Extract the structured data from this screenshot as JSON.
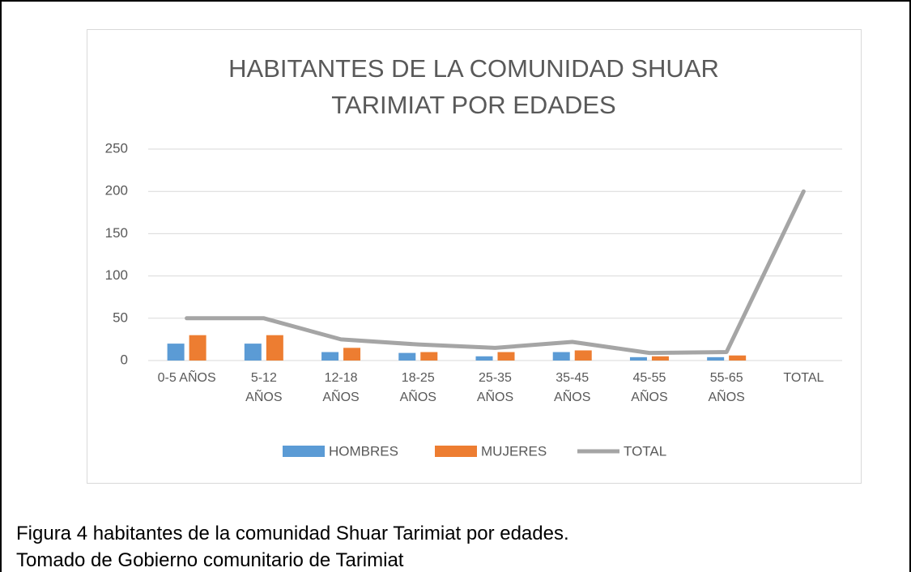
{
  "chart_data": {
    "type": "bar",
    "title": "HABITANTES DE LA COMUNIDAD SHUAR TARIMIAT POR EDADES",
    "categories": [
      "0-5 AÑOS",
      "5-12 AÑOS",
      "12-18 AÑOS",
      "18-25 AÑOS",
      "25-35 AÑOS",
      "35-45 AÑOS",
      "45-55 AÑOS",
      "55-65 AÑOS",
      "TOTAL"
    ],
    "series": [
      {
        "name": "HOMBRES",
        "type": "bar",
        "color": "#5b9bd5",
        "values": [
          20,
          20,
          10,
          9,
          5,
          10,
          4,
          4,
          null
        ]
      },
      {
        "name": "MUJERES",
        "type": "bar",
        "color": "#ed7d31",
        "values": [
          30,
          30,
          15,
          10,
          10,
          12,
          5,
          6,
          null
        ]
      },
      {
        "name": "TOTAL",
        "type": "line",
        "color": "#a5a5a5",
        "values": [
          50,
          50,
          25,
          19,
          15,
          22,
          9,
          10,
          200
        ]
      }
    ],
    "ylim": [
      0,
      250
    ],
    "yticks": [
      0,
      50,
      100,
      150,
      200,
      250
    ],
    "grid": true,
    "legend": "bottom"
  },
  "caption": [
    "Figura  4 habitantes de la comunidad Shuar Tarimiat por edades.",
    "Tomado de Gobierno comunitario de Tarimiat"
  ]
}
